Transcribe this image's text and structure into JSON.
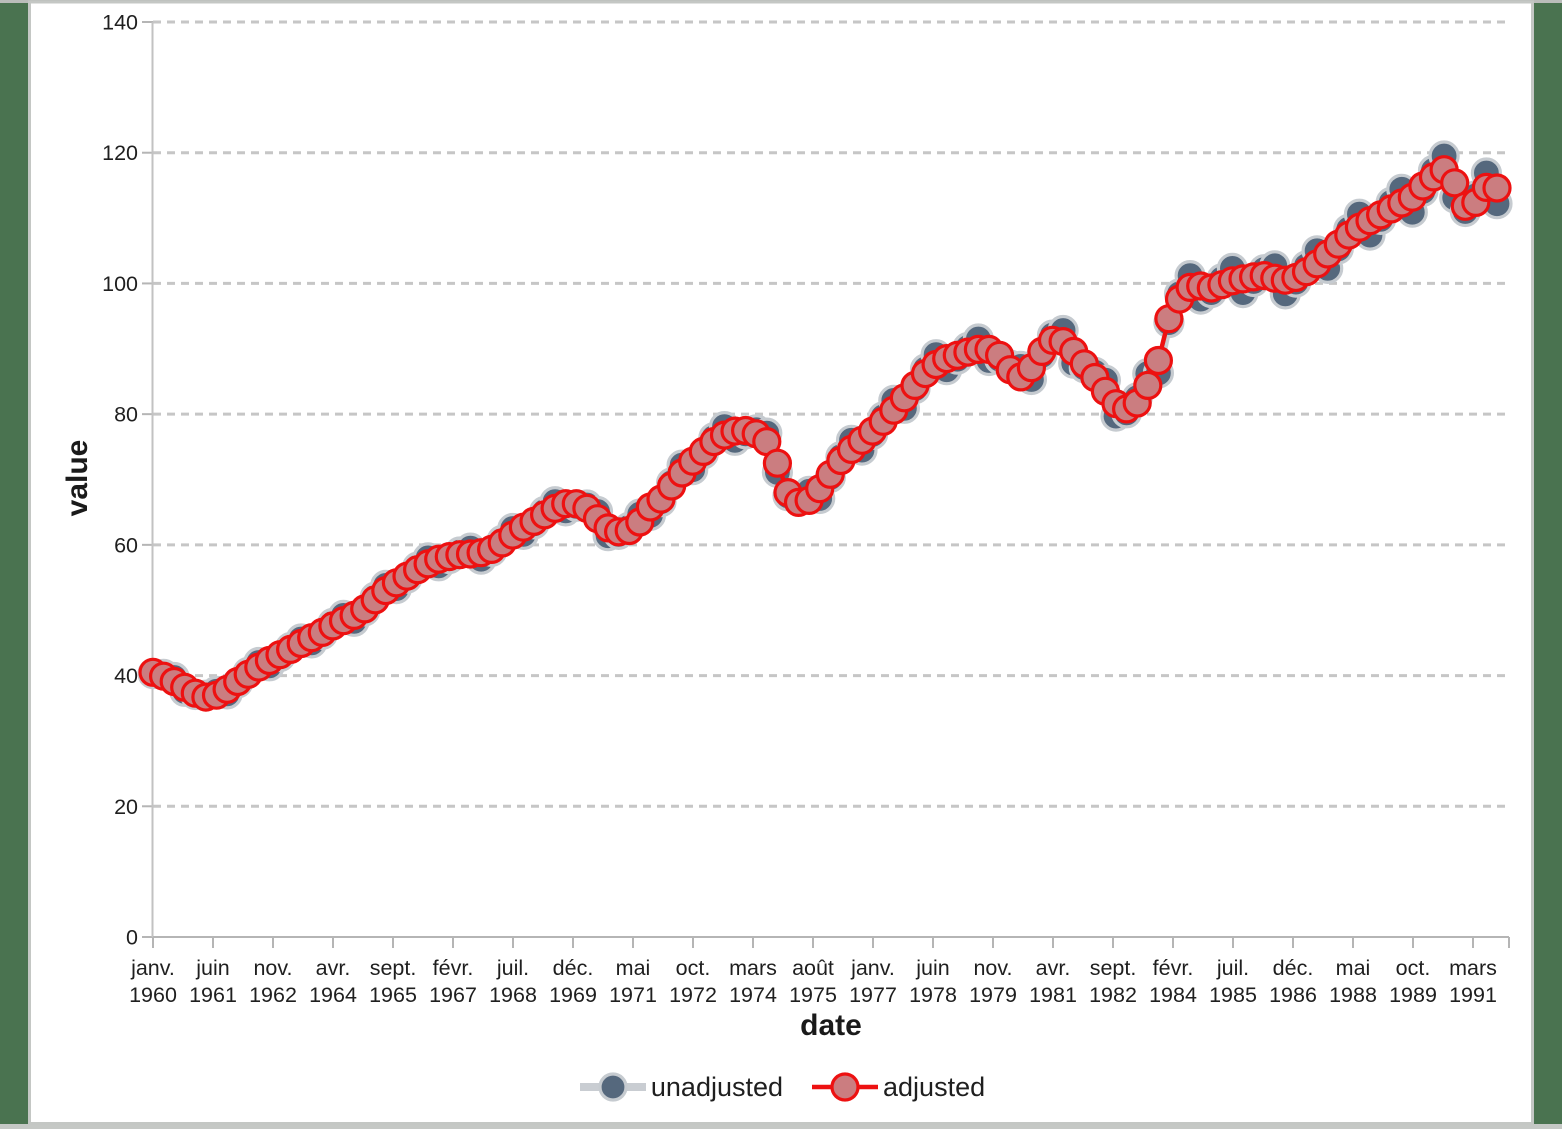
{
  "window": {
    "background_color": "#4a7350",
    "panel_background": "#ffffff",
    "panel_border_color": "#c4c7c4",
    "top_strip_color": "#babdba",
    "bottom_strip_color": "#c5c8c5"
  },
  "chart_data": {
    "type": "line",
    "title": "",
    "xlabel": "date",
    "ylabel": "value",
    "frequency": "quarterly",
    "x_start": "1960-Q1",
    "x_end": "1991-Q4",
    "n_points": 128,
    "ylim": [
      0,
      140
    ],
    "y_ticks": [
      0,
      20,
      40,
      60,
      80,
      100,
      120,
      140
    ],
    "grid": "horizontal dashed",
    "legend_position": "bottom center",
    "axis_color": "#c2c2c2",
    "gridline_color": "#c6c6c6",
    "tick_color": "#b5b5b5",
    "text_color": "#1f1f1f",
    "x_tick_labels": [
      [
        "janv.",
        "1960"
      ],
      [
        "juin",
        "1961"
      ],
      [
        "nov.",
        "1962"
      ],
      [
        "avr.",
        "1964"
      ],
      [
        "sept.",
        "1965"
      ],
      [
        "févr.",
        "1967"
      ],
      [
        "juil.",
        "1968"
      ],
      [
        "déc.",
        "1969"
      ],
      [
        "mai",
        "1971"
      ],
      [
        "oct.",
        "1972"
      ],
      [
        "mars",
        "1974"
      ],
      [
        "août",
        "1975"
      ],
      [
        "janv.",
        "1977"
      ],
      [
        "juin",
        "1978"
      ],
      [
        "nov.",
        "1979"
      ],
      [
        "avr.",
        "1981"
      ],
      [
        "sept.",
        "1982"
      ],
      [
        "févr.",
        "1984"
      ],
      [
        "juil.",
        "1985"
      ],
      [
        "déc.",
        "1986"
      ],
      [
        "mai",
        "1988"
      ],
      [
        "oct.",
        "1989"
      ],
      [
        "mars",
        "1991"
      ]
    ],
    "series": [
      {
        "name": "unadjusted",
        "line_color": "#c9cdd2",
        "line_width": 8,
        "marker_fill": "#55687d",
        "marker_stroke": "#c6cbd0",
        "marker_radius": 14,
        "values": [
          40.3,
          40.2,
          39.7,
          37.6,
          37.1,
          37.0,
          37.6,
          37.2,
          38.9,
          40.5,
          42.0,
          41.5,
          42.9,
          44.3,
          45.6,
          45.0,
          46.3,
          48.0,
          49.2,
          48.3,
          49.9,
          52.0,
          53.8,
          53.3,
          54.9,
          56.6,
          58.0,
          56.8,
          57.9,
          58.9,
          59.5,
          57.8,
          59.0,
          60.7,
          62.5,
          61.6,
          63.2,
          65.1,
          66.6,
          65.2,
          65.9,
          66.1,
          65.1,
          61.4,
          61.6,
          62.7,
          64.7,
          64.5,
          66.6,
          69.5,
          72.2,
          71.5,
          73.9,
          76.4,
          78.1,
          76.0,
          77.0,
          77.6,
          77.1,
          71.1,
          67.5,
          67.1,
          68.2,
          67.1,
          70.3,
          73.5,
          76.0,
          74.5,
          76.9,
          79.6,
          82.1,
          80.9,
          83.9,
          86.9,
          89.1,
          86.8,
          88.4,
          90.2,
          91.5,
          88.2,
          88.4,
          87.5,
          87.3,
          85.3,
          89.0,
          92.1,
          92.8,
          87.8,
          87.1,
          86.4,
          85.2,
          79.7,
          80.2,
          82.5,
          86.2,
          86.3,
          94.0,
          98.4,
          101.2,
          97.6,
          98.6,
          100.7,
          102.3,
          98.6,
          100.3,
          102.1,
          102.7,
          98.4,
          100.2,
          102.7,
          105.0,
          102.3,
          105.3,
          108.3,
          110.6,
          107.4,
          109.8,
          112.4,
          114.4,
          110.9,
          114.1,
          117.3,
          119.5,
          113.1,
          111.0,
          113.4,
          116.9,
          112.2
        ]
      },
      {
        "name": "adjusted",
        "line_color": "#ed1111",
        "line_width": 4.5,
        "marker_fill": "#cb7d80",
        "marker_stroke": "#ed1111",
        "marker_radius": 13,
        "values": [
          40.5,
          39.9,
          39.1,
          38.2,
          37.3,
          36.7,
          37.0,
          37.9,
          39.1,
          40.2,
          41.3,
          42.3,
          43.2,
          44.0,
          44.9,
          45.8,
          46.6,
          47.6,
          48.4,
          49.2,
          50.2,
          51.6,
          53.0,
          54.2,
          55.2,
          56.2,
          57.1,
          57.8,
          58.2,
          58.5,
          58.6,
          58.8,
          59.3,
          60.3,
          61.5,
          62.7,
          63.6,
          64.6,
          65.6,
          66.3,
          66.3,
          65.6,
          64.0,
          62.6,
          62.0,
          62.2,
          63.5,
          65.8,
          67.0,
          69.0,
          71.0,
          72.8,
          74.3,
          75.8,
          76.8,
          77.4,
          77.5,
          77.0,
          75.8,
          72.5,
          68.0,
          66.5,
          66.8,
          68.6,
          70.8,
          72.9,
          74.6,
          76.0,
          77.4,
          78.9,
          80.6,
          82.5,
          84.4,
          86.2,
          87.6,
          88.5,
          89.0,
          89.5,
          89.9,
          89.9,
          89.0,
          86.8,
          85.7,
          87.1,
          89.6,
          91.3,
          91.1,
          89.6,
          87.7,
          85.6,
          83.5,
          81.6,
          80.8,
          81.7,
          84.4,
          88.2,
          94.6,
          97.6,
          99.4,
          99.6,
          99.3,
          99.8,
          100.4,
          100.7,
          101.0,
          101.2,
          100.8,
          100.5,
          100.9,
          101.8,
          103.0,
          104.5,
          106.0,
          107.4,
          108.6,
          109.6,
          110.5,
          111.4,
          112.3,
          113.2,
          114.9,
          116.3,
          117.4,
          115.4,
          111.8,
          112.4,
          114.7,
          114.6
        ]
      }
    ]
  }
}
